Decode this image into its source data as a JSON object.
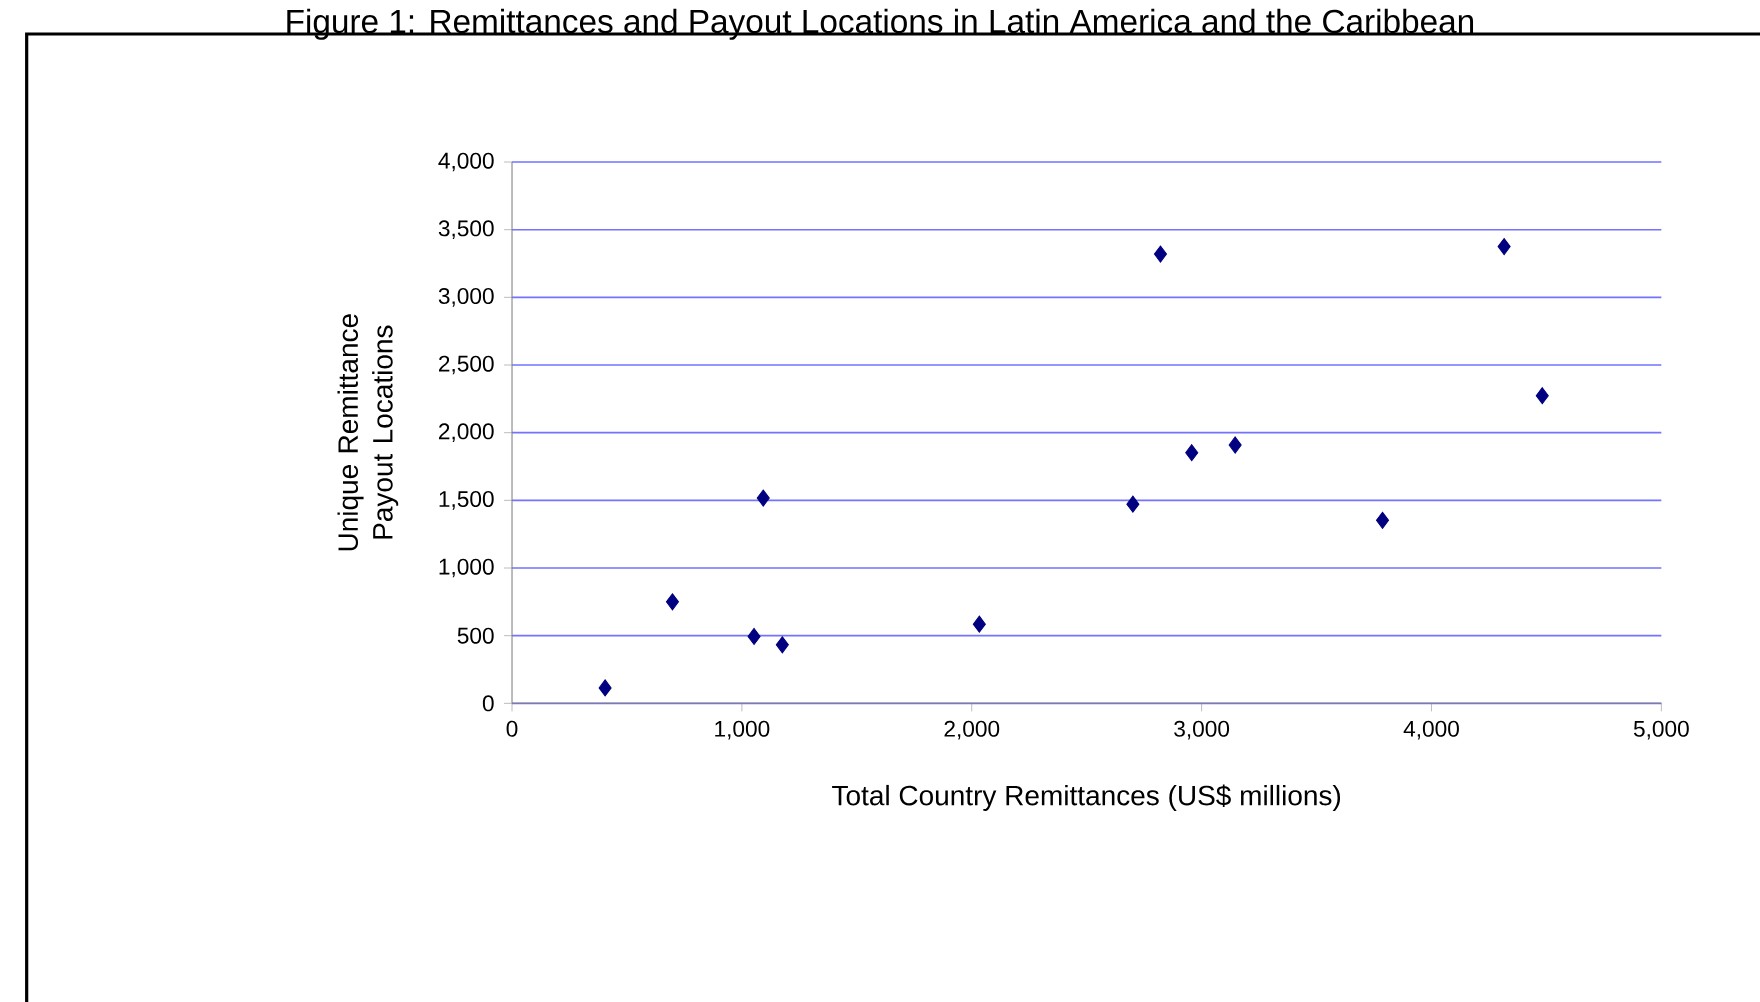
{
  "chart_data": {
    "type": "scatter",
    "title": "Figure 1: Remittances and Payout Locations in Latin America and the Caribbean",
    "xlabel": "Total Country Remittances (US$ millions)",
    "ylabel": "Unique Remittance Payout Locations",
    "x": [
      405,
      698,
      1053,
      1093,
      1176,
      2033,
      2701,
      2821,
      2957,
      3146,
      3787,
      4316,
      4482
    ],
    "values": [
      114,
      750,
      494,
      1517,
      432,
      585,
      1472,
      3320,
      1852,
      1909,
      1352,
      3375,
      2273
    ],
    "color": "#000080",
    "marker": "diamond",
    "xlim": [
      0,
      5000
    ],
    "xticks": [
      {
        "value": 0,
        "label": "0"
      },
      {
        "value": 1000,
        "label": "1,000"
      },
      {
        "value": 2000,
        "label": "2,000"
      },
      {
        "value": 3000,
        "label": "3,000"
      },
      {
        "value": 4000,
        "label": "4,000"
      },
      {
        "value": 5000,
        "label": "5,000"
      }
    ],
    "ylim": [
      0,
      4000
    ],
    "yticks": [
      {
        "value": 0,
        "label": "0"
      },
      {
        "value": 500,
        "label": "500"
      },
      {
        "value": 1000,
        "label": "1,000"
      },
      {
        "value": 1500,
        "label": "1,500"
      },
      {
        "value": 2000,
        "label": "2,000"
      },
      {
        "value": 2500,
        "label": "2,500"
      },
      {
        "value": 3000,
        "label": "3,000"
      },
      {
        "value": 3500,
        "label": "3,500"
      },
      {
        "value": 4000,
        "label": "4,000"
      }
    ],
    "grid": "y"
  }
}
